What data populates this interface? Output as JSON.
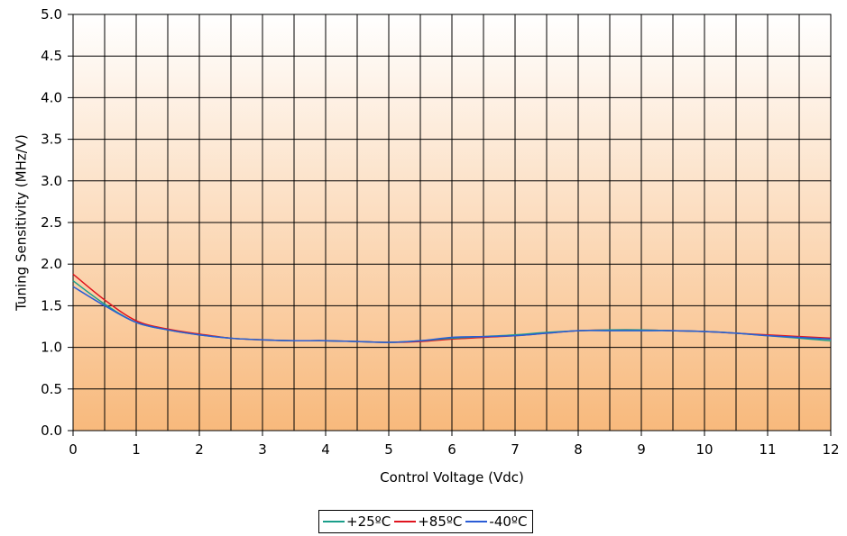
{
  "chart_data": {
    "type": "line",
    "xlabel": "Control Voltage (Vdc)",
    "ylabel": "Tuning Sensitivity (MHz/V)",
    "xlim": [
      0,
      12
    ],
    "ylim": [
      0,
      5
    ],
    "x_ticks": [
      "0",
      "1",
      "2",
      "3",
      "4",
      "5",
      "6",
      "7",
      "8",
      "9",
      "10",
      "11",
      "12"
    ],
    "y_ticks": [
      "0.0",
      "0.5",
      "1.0",
      "1.5",
      "2.0",
      "2.5",
      "3.0",
      "3.5",
      "4.0",
      "4.5",
      "5.0"
    ],
    "grid": true,
    "legend_position": "bottom-center",
    "background_gradient": [
      "#ffffff",
      "#f8b97c"
    ],
    "series": [
      {
        "name": "+25ºC",
        "color": "#1a9e8a",
        "x": [
          0,
          0.5,
          1,
          1.5,
          2,
          2.5,
          3,
          3.5,
          4,
          4.5,
          5,
          5.5,
          6,
          6.5,
          7,
          7.5,
          8,
          8.5,
          9,
          9.5,
          10,
          10.5,
          11,
          11.5,
          12
        ],
        "y": [
          1.8,
          1.52,
          1.3,
          1.21,
          1.15,
          1.11,
          1.09,
          1.08,
          1.08,
          1.07,
          1.06,
          1.08,
          1.11,
          1.13,
          1.15,
          1.18,
          1.2,
          1.21,
          1.21,
          1.2,
          1.19,
          1.17,
          1.14,
          1.11,
          1.08
        ]
      },
      {
        "name": "+85ºC",
        "color": "#e0141e",
        "x": [
          0,
          0.5,
          1,
          1.5,
          2,
          2.5,
          3,
          3.5,
          4,
          4.5,
          5,
          5.5,
          6,
          6.5,
          7,
          7.5,
          8,
          8.5,
          9,
          9.5,
          10,
          10.5,
          11,
          11.5,
          12
        ],
        "y": [
          1.88,
          1.57,
          1.32,
          1.22,
          1.16,
          1.11,
          1.09,
          1.08,
          1.08,
          1.07,
          1.06,
          1.07,
          1.1,
          1.12,
          1.14,
          1.17,
          1.2,
          1.21,
          1.21,
          1.2,
          1.19,
          1.17,
          1.15,
          1.13,
          1.11
        ]
      },
      {
        "name": "-40ºC",
        "color": "#2a5cd6",
        "x": [
          0,
          0.5,
          1,
          1.5,
          2,
          2.5,
          3,
          3.5,
          4,
          4.5,
          5,
          5.5,
          6,
          6.5,
          7,
          7.5,
          8,
          8.5,
          9,
          9.5,
          10,
          10.5,
          11,
          11.5,
          12
        ],
        "y": [
          1.73,
          1.5,
          1.3,
          1.21,
          1.15,
          1.11,
          1.09,
          1.08,
          1.08,
          1.07,
          1.06,
          1.08,
          1.12,
          1.13,
          1.14,
          1.17,
          1.2,
          1.2,
          1.2,
          1.2,
          1.19,
          1.17,
          1.14,
          1.12,
          1.1
        ]
      }
    ]
  }
}
